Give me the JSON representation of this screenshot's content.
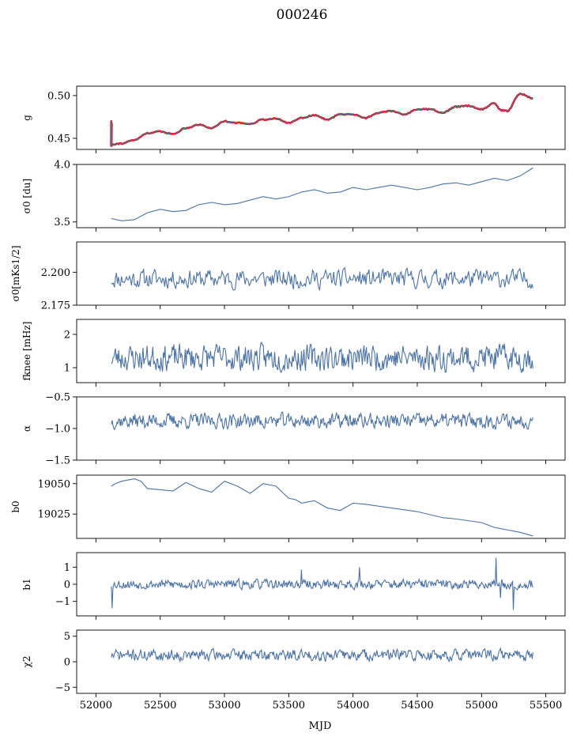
{
  "figure": {
    "title": "000246",
    "xlabel": "MJD",
    "xlim": [
      51850,
      55650
    ],
    "xticks": [
      52000,
      52500,
      53000,
      53500,
      54000,
      54500,
      55000,
      55500
    ],
    "colors": {
      "series": "#4c72a4",
      "highlight": "#ff0000",
      "axes": "#000000"
    }
  },
  "chart_data": [
    {
      "type": "line",
      "ylabel": "g",
      "ylim": [
        0.437,
        0.511
      ],
      "yticks": [
        {
          "v": 0.45,
          "t": "0.45"
        },
        {
          "v": 0.5,
          "t": "0.50"
        }
      ],
      "x_range": [
        52120,
        55400
      ],
      "series": [
        {
          "values_model": "oscillating",
          "x": [
            52120,
            52200,
            52300,
            52400,
            52500,
            52600,
            52700,
            52800,
            52900,
            53000,
            53100,
            53200,
            53300,
            53400,
            53500,
            53600,
            53700,
            53800,
            53900,
            54000,
            54100,
            54200,
            54300,
            54400,
            54500,
            54600,
            54700,
            54800,
            54900,
            55000,
            55100,
            55150,
            55200,
            55300,
            55400
          ],
          "y": [
            0.443,
            0.444,
            0.448,
            0.456,
            0.458,
            0.455,
            0.462,
            0.466,
            0.462,
            0.47,
            0.468,
            0.467,
            0.472,
            0.473,
            0.468,
            0.474,
            0.477,
            0.472,
            0.478,
            0.478,
            0.474,
            0.48,
            0.482,
            0.478,
            0.484,
            0.484,
            0.48,
            0.487,
            0.488,
            0.484,
            0.491,
            0.483,
            0.482,
            0.502,
            0.497
          ]
        }
      ],
      "highlight_color": "#ff0000"
    },
    {
      "type": "line",
      "ylabel": "σ0 [du]",
      "ylim": [
        3.45,
        4.0
      ],
      "yticks": [
        {
          "v": 3.5,
          "t": "3.5"
        },
        {
          "v": 4.0,
          "t": "4.0"
        }
      ],
      "x": [
        52120,
        52200,
        52300,
        52400,
        52500,
        52600,
        52700,
        52800,
        52900,
        53000,
        53100,
        53200,
        53300,
        53400,
        53500,
        53600,
        53700,
        53800,
        53900,
        54000,
        54100,
        54200,
        54300,
        54400,
        54500,
        54600,
        54700,
        54800,
        54900,
        55000,
        55100,
        55200,
        55300,
        55400
      ],
      "y": [
        3.53,
        3.51,
        3.52,
        3.58,
        3.61,
        3.59,
        3.6,
        3.65,
        3.67,
        3.65,
        3.66,
        3.69,
        3.72,
        3.7,
        3.72,
        3.76,
        3.78,
        3.75,
        3.76,
        3.8,
        3.78,
        3.8,
        3.82,
        3.8,
        3.78,
        3.8,
        3.83,
        3.84,
        3.82,
        3.85,
        3.88,
        3.86,
        3.9,
        3.97
      ]
    },
    {
      "type": "line",
      "ylabel": "σ0[mKs1/2]",
      "ylim": [
        2.175,
        2.223
      ],
      "yticks": [
        {
          "v": 2.175,
          "t": "2.175"
        },
        {
          "v": 2.2,
          "t": "2.200"
        }
      ],
      "x_range": [
        52120,
        55400
      ],
      "noise": {
        "mean": 2.195,
        "amp": 0.009,
        "points": 420,
        "seed": 11
      },
      "y_end_values": [
        2.191,
        2.188
      ]
    },
    {
      "type": "line",
      "ylabel": "fknee [mHz]",
      "ylim": [
        0.55,
        2.45
      ],
      "yticks": [
        {
          "v": 1,
          "t": "1"
        },
        {
          "v": 2,
          "t": "2"
        }
      ],
      "x_range": [
        52120,
        55400
      ],
      "noise": {
        "mean": 1.3,
        "amp": 0.5,
        "points": 520,
        "seed": 23
      }
    },
    {
      "type": "line",
      "ylabel": "α",
      "ylim": [
        -1.5,
        -0.5
      ],
      "yticks": [
        {
          "v": -1.5,
          "t": "−1.5"
        },
        {
          "v": -1.0,
          "t": "−1.0"
        },
        {
          "v": -0.5,
          "t": "−0.5"
        }
      ],
      "x_range": [
        52120,
        55400
      ],
      "noise": {
        "mean": -0.88,
        "amp": 0.15,
        "points": 520,
        "seed": 37
      }
    },
    {
      "type": "line",
      "ylabel": "b0",
      "ylim": [
        19005,
        19057
      ],
      "yticks": [
        {
          "v": 19025,
          "t": "19025"
        },
        {
          "v": 19050,
          "t": "19050"
        }
      ],
      "x": [
        52120,
        52150,
        52200,
        52300,
        52350,
        52400,
        52500,
        52600,
        52700,
        52800,
        52900,
        53000,
        53100,
        53200,
        53300,
        53400,
        53500,
        53550,
        53600,
        53700,
        53800,
        53900,
        54000,
        54100,
        54300,
        54500,
        54700,
        54800,
        55000,
        55100,
        55200,
        55300,
        55400
      ],
      "y": [
        19048,
        19050,
        19052,
        19054,
        19052,
        19046,
        19045,
        19044,
        19051,
        19046,
        19043,
        19052,
        19048,
        19042,
        19050,
        19048,
        19038,
        19037,
        19034,
        19036,
        19030,
        19028,
        19034,
        19033,
        19030,
        19027,
        19022,
        19021,
        19018,
        19014,
        19012,
        19010,
        19007
      ]
    },
    {
      "type": "line",
      "ylabel": "b1",
      "ylim": [
        -1.85,
        1.85
      ],
      "yticks": [
        {
          "v": -1,
          "t": "−1"
        },
        {
          "v": 0,
          "t": "0"
        },
        {
          "v": 1,
          "t": "1"
        }
      ],
      "x_range": [
        52120,
        55400
      ],
      "noise": {
        "mean": 0.0,
        "amp": 0.35,
        "points": 560,
        "seed": 53
      },
      "spikes": [
        {
          "x": 52125,
          "y": -1.4
        },
        {
          "x": 53600,
          "y": 0.85
        },
        {
          "x": 54050,
          "y": 1.0
        },
        {
          "x": 55110,
          "y": 1.55
        },
        {
          "x": 55150,
          "y": -0.8
        },
        {
          "x": 55250,
          "y": -1.5
        }
      ]
    },
    {
      "type": "line",
      "ylabel": "χ2",
      "ylim": [
        -6.2,
        6.2
      ],
      "yticks": [
        {
          "v": -5,
          "t": "−5"
        },
        {
          "v": 0,
          "t": "0"
        },
        {
          "v": 5,
          "t": "5"
        }
      ],
      "x_range": [
        52120,
        55400
      ],
      "noise": {
        "mean": 1.3,
        "amp": 1.4,
        "points": 560,
        "seed": 71
      }
    }
  ]
}
